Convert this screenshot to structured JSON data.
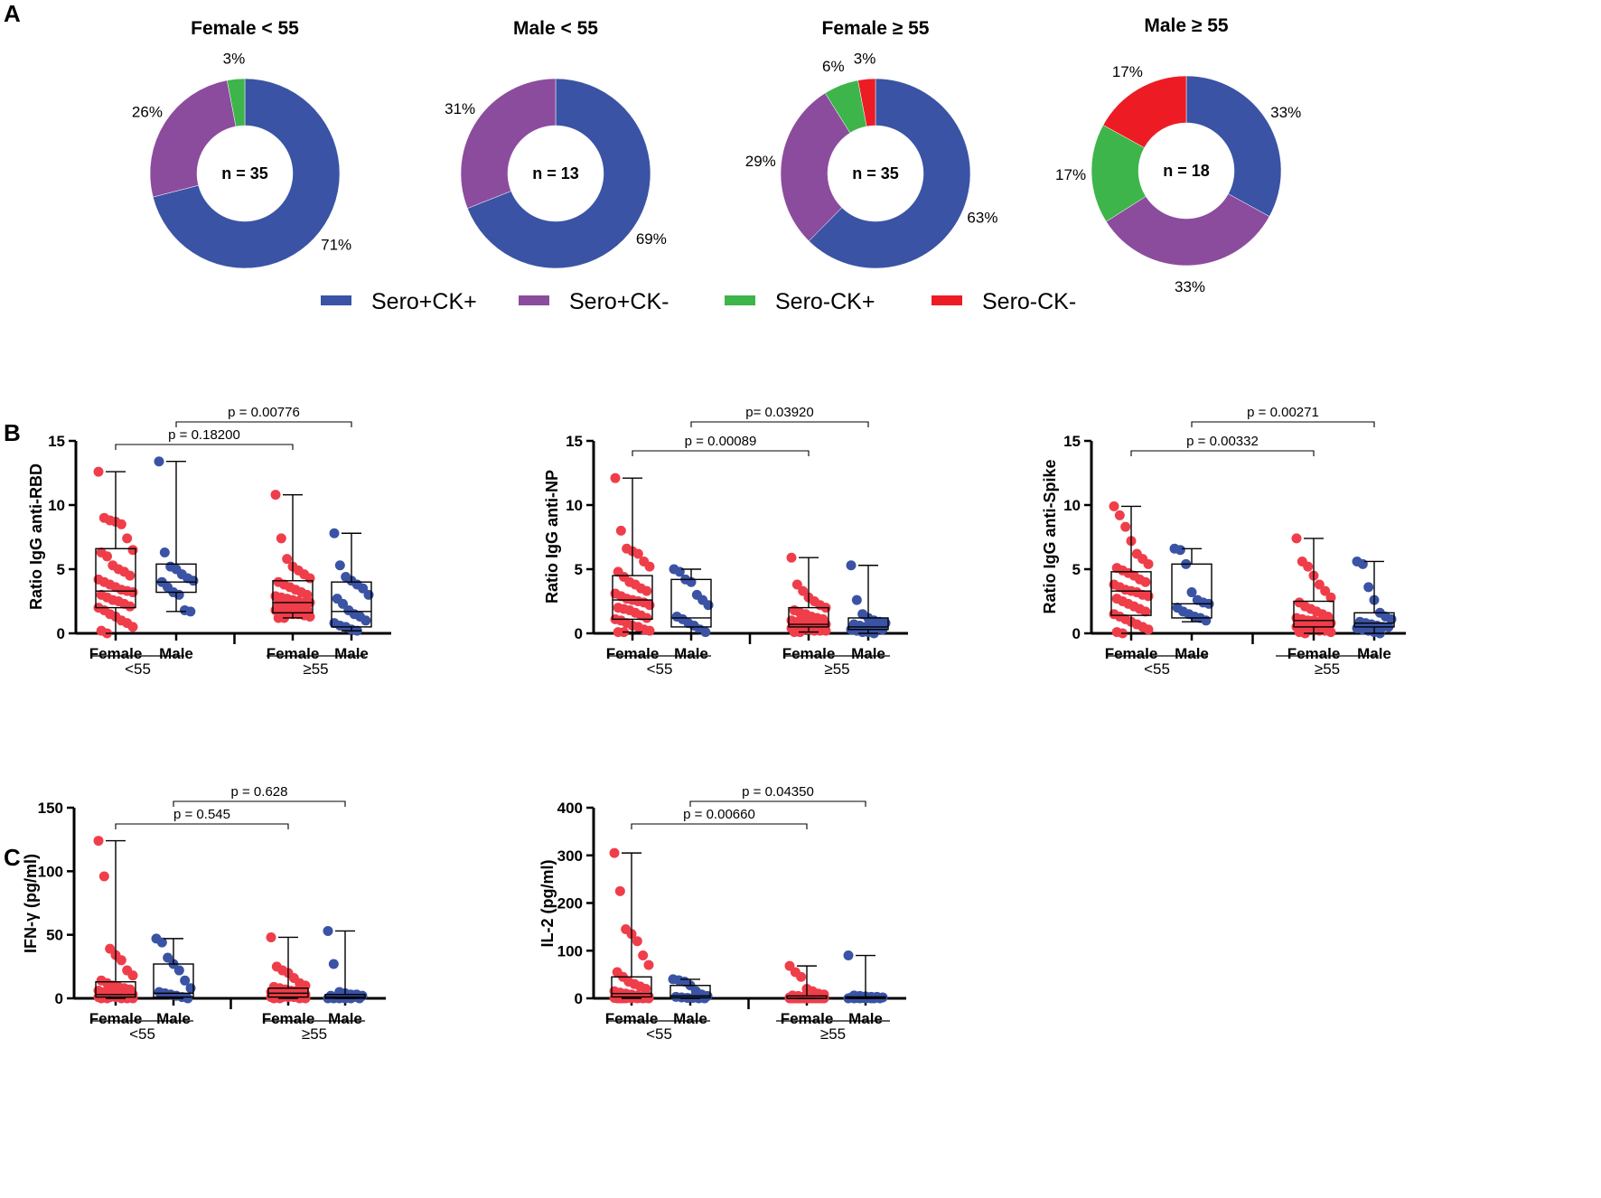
{
  "panels": {
    "a": "A",
    "b": "B",
    "c": "C"
  },
  "colors": {
    "sero_pos_ck_pos": "#3a53a4",
    "sero_pos_ck_neg": "#8b4c9e",
    "sero_neg_ck_pos": "#3db54a",
    "sero_neg_ck_neg": "#ed1c24",
    "female": "#ef3e4a",
    "male": "#3a53a4"
  },
  "legend": [
    {
      "label": "Sero+CK+",
      "color": "#3a53a4"
    },
    {
      "label": "Sero+CK-",
      "color": "#8b4c9e"
    },
    {
      "label": "Sero-CK+",
      "color": "#3db54a"
    },
    {
      "label": "Sero-CK-",
      "color": "#ed1c24"
    }
  ],
  "chart_data": [
    {
      "type": "pie",
      "title": "Female < 55",
      "center_label": "n = 35",
      "slices": [
        {
          "name": "Sero+CK+",
          "value": 71,
          "label": "71%"
        },
        {
          "name": "Sero+CK-",
          "value": 26,
          "label": "26%"
        },
        {
          "name": "Sero-CK+",
          "value": 3,
          "label": "3%"
        }
      ]
    },
    {
      "type": "pie",
      "title": "Male < 55",
      "center_label": "n = 13",
      "slices": [
        {
          "name": "Sero+CK+",
          "value": 69,
          "label": "69%"
        },
        {
          "name": "Sero+CK-",
          "value": 31,
          "label": "31%"
        }
      ]
    },
    {
      "type": "pie",
      "title": "Female ≥ 55",
      "center_label": "n = 35",
      "slices": [
        {
          "name": "Sero+CK+",
          "value": 63,
          "label": "63%"
        },
        {
          "name": "Sero+CK-",
          "value": 29,
          "label": "29%"
        },
        {
          "name": "Sero-CK+",
          "value": 6,
          "label": "6%"
        },
        {
          "name": "Sero-CK-",
          "value": 3,
          "label": "3%"
        }
      ]
    },
    {
      "type": "pie",
      "title": "Male ≥ 55",
      "center_label": "n = 18",
      "slices": [
        {
          "name": "Sero+CK+",
          "value": 33,
          "label": "33%"
        },
        {
          "name": "Sero+CK-",
          "value": 33,
          "label": "33%"
        },
        {
          "name": "Sero-CK+",
          "value": 17,
          "label": "17%"
        },
        {
          "name": "Sero-CK-",
          "value": 17,
          "label": "17%"
        }
      ]
    },
    {
      "type": "box-scatter",
      "ylabel": "Ratio IgG anti-RBD",
      "ylim": [
        0,
        15
      ],
      "yticks": [
        0,
        5,
        10,
        15
      ],
      "categories": [
        "Female",
        "Male",
        "Female",
        "Male"
      ],
      "groups": [
        "<55",
        "≥55"
      ],
      "comparisons": [
        {
          "from": 0,
          "to": 2,
          "label": "p = 0.18200"
        },
        {
          "from": 1,
          "to": 3,
          "label": "p = 0.00776"
        }
      ],
      "boxes": [
        {
          "min": 0,
          "q1": 2.0,
          "median": 3.3,
          "q3": 6.6,
          "max": 12.6,
          "points": [
            12.6,
            9.0,
            8.8,
            8.7,
            8.5,
            7.4,
            6.5,
            6.3,
            6.0,
            5.3,
            5.0,
            4.8,
            4.5,
            4.2,
            4.0,
            3.8,
            3.6,
            3.4,
            3.3,
            3.2,
            3.0,
            2.8,
            2.6,
            2.5,
            2.3,
            2.1,
            2.0,
            1.8,
            1.5,
            1.3,
            1.0,
            0.8,
            0.5,
            0.2,
            0
          ]
        },
        {
          "min": 1.7,
          "q1": 3.2,
          "median": 4.0,
          "q3": 5.4,
          "max": 13.4,
          "points": [
            13.4,
            6.3,
            5.2,
            5.0,
            4.6,
            4.3,
            4.1,
            4.0,
            3.6,
            3.2,
            3.0,
            1.8,
            1.7
          ]
        },
        {
          "min": 1.2,
          "q1": 1.6,
          "median": 2.4,
          "q3": 4.1,
          "max": 10.8,
          "points": [
            10.8,
            7.4,
            5.8,
            5.2,
            4.9,
            4.6,
            4.3,
            4.0,
            3.8,
            3.6,
            3.4,
            3.2,
            3.0,
            2.9,
            2.8,
            2.7,
            2.6,
            2.5,
            2.4,
            2.4,
            2.3,
            2.2,
            2.1,
            2.0,
            1.9,
            1.8,
            1.8,
            1.7,
            1.6,
            1.5,
            1.5,
            1.4,
            1.3,
            1.2,
            1.2
          ]
        },
        {
          "min": 0.2,
          "q1": 0.5,
          "median": 1.7,
          "q3": 4.0,
          "max": 7.8,
          "points": [
            7.8,
            5.3,
            4.4,
            4.1,
            3.8,
            3.5,
            3.0,
            2.7,
            2.3,
            1.8,
            1.5,
            1.3,
            1.0,
            0.8,
            0.6,
            0.5,
            0.3,
            0.2
          ]
        }
      ]
    },
    {
      "type": "box-scatter",
      "ylabel": "Ratio IgG anti-NP",
      "ylim": [
        0,
        15
      ],
      "yticks": [
        0,
        5,
        10,
        15
      ],
      "categories": [
        "Female",
        "Male",
        "Female",
        "Male"
      ],
      "groups": [
        "<55",
        "≥55"
      ],
      "comparisons": [
        {
          "from": 0,
          "to": 2,
          "label": "p = 0.00089"
        },
        {
          "from": 1,
          "to": 3,
          "label": "p= 0.03920"
        }
      ],
      "boxes": [
        {
          "min": 0.1,
          "q1": 1.1,
          "median": 2.6,
          "q3": 4.5,
          "max": 12.1,
          "points": [
            12.1,
            8.0,
            6.6,
            6.4,
            6.2,
            5.6,
            5.2,
            4.8,
            4.4,
            4.0,
            3.8,
            3.5,
            3.3,
            3.1,
            2.9,
            2.7,
            2.6,
            2.5,
            2.4,
            2.2,
            2.0,
            1.9,
            1.8,
            1.6,
            1.4,
            1.2,
            1.1,
            1.0,
            0.8,
            0.6,
            0.5,
            0.3,
            0.2,
            0.1,
            0.1
          ]
        },
        {
          "min": 0.0,
          "q1": 0.5,
          "median": 1.2,
          "q3": 4.2,
          "max": 5.0,
          "points": [
            5.0,
            4.8,
            4.2,
            4.0,
            3.0,
            2.6,
            2.2,
            1.3,
            1.1,
            0.8,
            0.6,
            0.3,
            0.1
          ]
        },
        {
          "min": 0.1,
          "q1": 0.5,
          "median": 0.7,
          "q3": 2.0,
          "max": 5.9,
          "points": [
            5.9,
            3.8,
            3.3,
            2.8,
            2.5,
            2.2,
            2.0,
            1.8,
            1.6,
            1.5,
            1.3,
            1.2,
            1.1,
            1.0,
            0.9,
            0.9,
            0.8,
            0.8,
            0.7,
            0.7,
            0.7,
            0.6,
            0.6,
            0.5,
            0.5,
            0.5,
            0.4,
            0.4,
            0.3,
            0.3,
            0.2,
            0.2,
            0.2,
            0.1,
            0.1
          ]
        },
        {
          "min": 0.0,
          "q1": 0.3,
          "median": 0.5,
          "q3": 1.2,
          "max": 5.3,
          "points": [
            5.3,
            2.6,
            1.5,
            1.2,
            1.0,
            0.9,
            0.8,
            0.7,
            0.6,
            0.5,
            0.5,
            0.4,
            0.3,
            0.3,
            0.2,
            0.1,
            0.1,
            0.0
          ]
        }
      ]
    },
    {
      "type": "box-scatter",
      "ylabel": "Ratio IgG anti-Spike",
      "ylim": [
        0,
        15
      ],
      "yticks": [
        0,
        5,
        10,
        15
      ],
      "categories": [
        "Female",
        "Male",
        "Female",
        "Male"
      ],
      "groups": [
        "<55",
        "≥55"
      ],
      "comparisons": [
        {
          "from": 0,
          "to": 2,
          "label": "p = 0.00332"
        },
        {
          "from": 1,
          "to": 3,
          "label": "p = 0.00271"
        }
      ],
      "boxes": [
        {
          "min": 0.0,
          "q1": 1.4,
          "median": 3.3,
          "q3": 4.8,
          "max": 9.9,
          "points": [
            9.9,
            9.2,
            8.3,
            7.2,
            6.2,
            5.8,
            5.4,
            5.1,
            4.9,
            4.7,
            4.5,
            4.2,
            4.0,
            3.8,
            3.6,
            3.4,
            3.3,
            3.2,
            3.0,
            2.9,
            2.7,
            2.5,
            2.3,
            2.1,
            1.9,
            1.7,
            1.5,
            1.3,
            1.1,
            0.9,
            0.7,
            0.5,
            0.3,
            0.1,
            0.0
          ]
        },
        {
          "min": 0.9,
          "q1": 1.2,
          "median": 2.3,
          "q3": 5.4,
          "max": 6.6,
          "points": [
            6.6,
            6.5,
            5.4,
            3.2,
            2.6,
            2.4,
            2.3,
            2.0,
            1.7,
            1.5,
            1.3,
            1.2,
            1.0
          ]
        },
        {
          "min": 0.0,
          "q1": 0.5,
          "median": 1.0,
          "q3": 2.5,
          "max": 7.4,
          "points": [
            7.4,
            5.6,
            5.2,
            4.5,
            3.8,
            3.3,
            2.8,
            2.4,
            2.1,
            1.9,
            1.7,
            1.5,
            1.3,
            1.2,
            1.1,
            1.0,
            1.0,
            0.9,
            0.9,
            0.8,
            0.8,
            0.7,
            0.7,
            0.6,
            0.6,
            0.5,
            0.5,
            0.4,
            0.3,
            0.3,
            0.2,
            0.2,
            0.1,
            0.1,
            0.0
          ]
        },
        {
          "min": 0.0,
          "q1": 0.5,
          "median": 0.8,
          "q3": 1.6,
          "max": 5.6,
          "points": [
            5.6,
            5.4,
            3.6,
            2.6,
            1.6,
            1.3,
            1.1,
            0.9,
            0.8,
            0.7,
            0.6,
            0.5,
            0.5,
            0.4,
            0.3,
            0.2,
            0.1,
            0.0
          ]
        }
      ]
    },
    {
      "type": "box-scatter",
      "ylabel": "IFN-γ (pg/ml)",
      "ylim": [
        0,
        150
      ],
      "yticks": [
        0,
        50,
        100,
        150
      ],
      "categories": [
        "Female",
        "Male",
        "Female",
        "Male"
      ],
      "groups": [
        "<55",
        "≥55"
      ],
      "comparisons": [
        {
          "from": 0,
          "to": 2,
          "label": "p = 0.545"
        },
        {
          "from": 1,
          "to": 3,
          "label": "p = 0.628"
        }
      ],
      "boxes": [
        {
          "min": 0,
          "q1": 1,
          "median": 3,
          "q3": 13,
          "max": 124,
          "points": [
            124,
            96,
            39,
            34,
            30,
            22,
            18,
            14,
            12,
            10,
            9,
            8,
            7,
            6,
            5,
            5,
            4,
            4,
            3,
            3,
            3,
            2,
            2,
            2,
            2,
            1,
            1,
            1,
            1,
            1,
            0,
            0,
            0,
            0,
            0
          ]
        },
        {
          "min": 0,
          "q1": 1,
          "median": 4,
          "q3": 27,
          "max": 47,
          "points": [
            47,
            44,
            32,
            27,
            22,
            14,
            8,
            5,
            4,
            3,
            2,
            1,
            0
          ]
        },
        {
          "min": 0,
          "q1": 1,
          "median": 4,
          "q3": 8,
          "max": 48,
          "points": [
            48,
            25,
            22,
            20,
            16,
            12,
            10,
            9,
            8,
            7,
            6,
            6,
            5,
            5,
            4,
            4,
            4,
            3,
            3,
            3,
            3,
            2,
            2,
            2,
            2,
            2,
            1,
            1,
            1,
            1,
            1,
            0,
            0,
            0,
            0
          ]
        },
        {
          "min": 0,
          "q1": 0,
          "median": 1,
          "q3": 3,
          "max": 53,
          "points": [
            53,
            27,
            5,
            4,
            3,
            3,
            2,
            2,
            1,
            1,
            1,
            1,
            0,
            0,
            0,
            0,
            0,
            0
          ]
        }
      ]
    },
    {
      "type": "box-scatter",
      "ylabel": "IL-2 (pg/ml)",
      "ylim": [
        0,
        400
      ],
      "yticks": [
        0,
        100,
        200,
        300,
        400
      ],
      "categories": [
        "Female",
        "Male",
        "Female",
        "Male"
      ],
      "groups": [
        "<55",
        "≥55"
      ],
      "comparisons": [
        {
          "from": 0,
          "to": 2,
          "label": "p = 0.00660"
        },
        {
          "from": 1,
          "to": 3,
          "label": "p = 0.04350"
        }
      ],
      "boxes": [
        {
          "min": 0,
          "q1": 3,
          "median": 10,
          "q3": 45,
          "max": 305,
          "points": [
            305,
            225,
            145,
            135,
            120,
            90,
            70,
            55,
            45,
            35,
            30,
            25,
            20,
            15,
            12,
            10,
            8,
            6,
            5,
            4,
            3,
            3,
            2,
            2,
            1,
            1,
            1,
            0,
            0,
            0,
            0,
            0,
            0,
            0,
            0
          ]
        },
        {
          "min": 0,
          "q1": 1,
          "median": 5,
          "q3": 27,
          "max": 40,
          "points": [
            40,
            38,
            35,
            27,
            15,
            8,
            5,
            3,
            2,
            1,
            1,
            0,
            0
          ]
        },
        {
          "min": 0,
          "q1": 0,
          "median": 0,
          "q3": 5,
          "max": 68,
          "points": [
            68,
            55,
            45,
            20,
            15,
            10,
            8,
            6,
            5,
            4,
            3,
            3,
            2,
            2,
            2,
            1,
            1,
            1,
            1,
            1,
            0,
            0,
            0,
            0,
            0,
            0,
            0,
            0,
            0,
            0,
            0,
            0,
            0,
            0,
            0
          ]
        },
        {
          "min": 0,
          "q1": 0,
          "median": 0,
          "q3": 3,
          "max": 90,
          "points": [
            90,
            6,
            5,
            4,
            3,
            3,
            2,
            2,
            1,
            1,
            1,
            0,
            0,
            0,
            0,
            0,
            0,
            0
          ]
        }
      ]
    }
  ]
}
